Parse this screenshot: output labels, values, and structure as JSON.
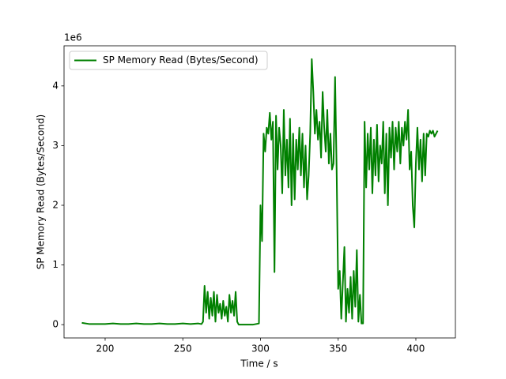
{
  "chart_data": {
    "type": "line",
    "xlabel": "Time / s",
    "ylabel": "SP Memory Read (Bytes/Second)",
    "y_offset_text": "1e6",
    "legend": "upper left",
    "xlim": [
      173.55,
      425.45
    ],
    "ylim": [
      -0.2225,
      4.6725
    ],
    "xticks": [
      200,
      250,
      300,
      350,
      400
    ],
    "yticks": [
      0,
      1,
      2,
      3,
      4
    ],
    "x": [
      185,
      190,
      195,
      200,
      205,
      210,
      215,
      220,
      225,
      230,
      235,
      240,
      245,
      250,
      255,
      260,
      262,
      263,
      264,
      265,
      266,
      267,
      268,
      269,
      270,
      271,
      272,
      273,
      274,
      275,
      276,
      277,
      278,
      279,
      280,
      281,
      282,
      283,
      284,
      285,
      286,
      290,
      295,
      299,
      300,
      301,
      302,
      303,
      304,
      305,
      306,
      307,
      308,
      309,
      310,
      311,
      312,
      313,
      314,
      315,
      316,
      317,
      318,
      319,
      320,
      321,
      322,
      323,
      324,
      325,
      326,
      327,
      328,
      329,
      330,
      331,
      332,
      333,
      334,
      335,
      336,
      337,
      338,
      339,
      340,
      341,
      342,
      343,
      344,
      345,
      346,
      347,
      348,
      349,
      350,
      351,
      352,
      353,
      354,
      355,
      356,
      357,
      358,
      359,
      360,
      361,
      362,
      363,
      364,
      365,
      366,
      367,
      368,
      369,
      370,
      371,
      372,
      373,
      374,
      375,
      376,
      377,
      378,
      379,
      380,
      381,
      382,
      383,
      384,
      385,
      386,
      387,
      388,
      389,
      390,
      391,
      392,
      393,
      394,
      395,
      396,
      397,
      398,
      399,
      400,
      401,
      402,
      403,
      404,
      405,
      406,
      407,
      408,
      409,
      410,
      411,
      412,
      413,
      414
    ],
    "series": [
      {
        "name": "SP Memory Read (Bytes/Second)",
        "color": "#008000",
        "values": [
          0.03,
          0.01,
          0.01,
          0.01,
          0.02,
          0.01,
          0.01,
          0.02,
          0.01,
          0.01,
          0.02,
          0.01,
          0.01,
          0.02,
          0.01,
          0.02,
          0.01,
          0.05,
          0.65,
          0.2,
          0.55,
          0.1,
          0.45,
          0.15,
          0.55,
          0.05,
          0.5,
          0.2,
          0.35,
          0.1,
          0.4,
          0.15,
          0.3,
          0.05,
          0.5,
          0.2,
          0.4,
          0.15,
          0.55,
          0.05,
          0.0,
          0.0,
          0.0,
          0.02,
          2.0,
          1.4,
          3.2,
          2.9,
          3.3,
          3.2,
          3.55,
          3.1,
          3.4,
          0.88,
          3.5,
          2.6,
          3.3,
          3.0,
          2.2,
          3.6,
          2.5,
          3.1,
          2.3,
          3.45,
          2.0,
          3.2,
          2.1,
          3.1,
          2.6,
          3.3,
          2.5,
          3.2,
          2.3,
          3.0,
          2.1,
          2.5,
          3.2,
          4.45,
          3.9,
          3.2,
          3.6,
          3.1,
          3.4,
          2.8,
          3.9,
          3.3,
          2.9,
          3.6,
          2.7,
          3.2,
          2.6,
          2.7,
          4.15,
          2.6,
          0.6,
          0.9,
          0.1,
          0.7,
          1.3,
          0.05,
          0.6,
          0.2,
          0.8,
          0.1,
          0.9,
          0.3,
          1.25,
          0.05,
          0.5,
          0.02,
          0.02,
          3.4,
          2.3,
          3.2,
          2.6,
          3.3,
          2.2,
          3.1,
          2.5,
          3.35,
          2.4,
          3.0,
          2.7,
          3.4,
          2.2,
          3.2,
          2.0,
          3.3,
          2.8,
          3.4,
          2.6,
          3.3,
          2.9,
          3.4,
          2.7,
          3.3,
          3.0,
          3.4,
          3.1,
          3.6,
          2.6,
          2.9,
          2.0,
          1.63,
          2.7,
          3.3,
          2.6,
          3.1,
          2.4,
          3.2,
          2.5,
          3.2,
          3.15,
          3.25,
          3.2,
          3.25,
          3.15,
          3.2,
          3.25
        ]
      }
    ]
  }
}
